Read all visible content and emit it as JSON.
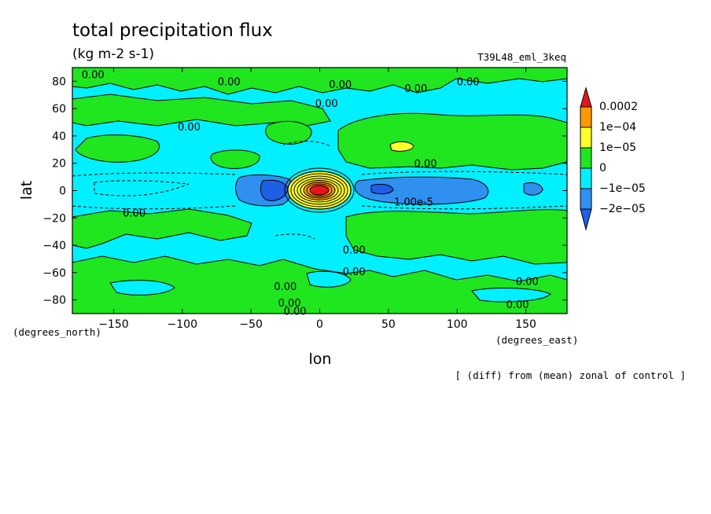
{
  "chart_data": {
    "type": "heatmap",
    "title": "total precipitation flux",
    "units": "(kg m-2 s-1)",
    "experiment": "T39L48_eml_3keq",
    "xlabel": "lon",
    "ylabel": "lat",
    "x_units": "(degrees_east)",
    "y_units": "(degrees_north)",
    "xlim": [
      -180,
      180
    ],
    "ylim": [
      -90,
      90
    ],
    "x_ticks": [
      -150,
      -100,
      -50,
      0,
      50,
      100,
      150
    ],
    "y_ticks": [
      80,
      60,
      40,
      20,
      0,
      -20,
      -40,
      -60,
      -80
    ],
    "note": "[ (diff) from (mean) zonal of control ]",
    "levels": [
      "0.0002",
      "1e-04",
      "1e-05",
      "0",
      "-1e-05",
      "-2e-05"
    ],
    "colors": {
      "red": "#e8141b",
      "orange": "#ff9b00",
      "yellow": "#ffff2a",
      "green": "#1fe61f",
      "cyan": "#00f0ff",
      "blue": "#2f90f0",
      "dark_blue": "#1f5fe6"
    },
    "contour_labels": [
      {
        "text": "0.00",
        "lon": -165,
        "lat": 85
      },
      {
        "text": "0.00",
        "lon": -66,
        "lat": 80
      },
      {
        "text": "0.00",
        "lon": 15,
        "lat": 78
      },
      {
        "text": "0.00",
        "lon": 70,
        "lat": 75
      },
      {
        "text": "0.00",
        "lon": 108,
        "lat": 80
      },
      {
        "text": "0.00",
        "lon": 5,
        "lat": 64
      },
      {
        "text": "0.00",
        "lon": -95,
        "lat": 47
      },
      {
        "text": "0.00",
        "lon": 77,
        "lat": 20
      },
      {
        "text": "-1.00e-5",
        "lon": 67,
        "lat": -8
      },
      {
        "text": "0.00",
        "lon": -135,
        "lat": -16
      },
      {
        "text": "0.00",
        "lon": 25,
        "lat": -43
      },
      {
        "text": "0.00",
        "lon": 25,
        "lat": -59
      },
      {
        "text": "0.00",
        "lon": -25,
        "lat": -70
      },
      {
        "text": "0.00",
        "lon": -22,
        "lat": -82
      },
      {
        "text": "0.00",
        "lon": -18,
        "lat": -88
      },
      {
        "text": "0.00",
        "lon": 151,
        "lat": -66
      },
      {
        "text": "0.00",
        "lon": 144,
        "lat": -83
      }
    ]
  }
}
